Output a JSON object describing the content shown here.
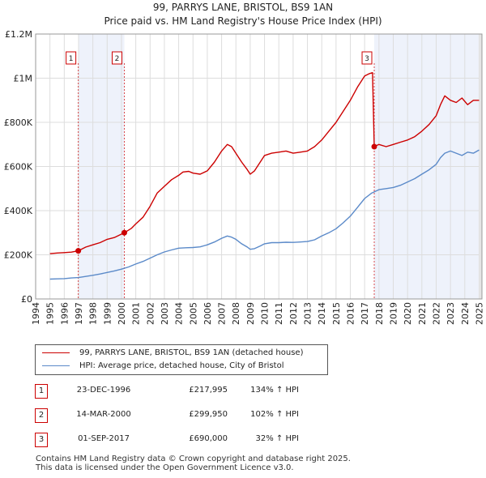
{
  "title": "99, PARRYS LANE, BRISTOL, BS9 1AN",
  "subtitle": "Price paid vs. HM Land Registry's House Price Index (HPI)",
  "colors": {
    "property": "#cc0000",
    "hpi": "#5b8ac9",
    "shade": "#eef2fb",
    "grid": "#dddddd"
  },
  "chart_data": {
    "type": "line",
    "title": "99, PARRYS LANE, BRISTOL, BS9 1AN",
    "subtitle": "Price paid vs. HM Land Registry's House Price Index (HPI)",
    "xlim": [
      1994,
      2025.2
    ],
    "ylim": [
      0,
      1200000
    ],
    "grid": true,
    "y_ticks": [
      {
        "value": 0,
        "label": "£0"
      },
      {
        "value": 200000,
        "label": "£200K"
      },
      {
        "value": 400000,
        "label": "£400K"
      },
      {
        "value": 600000,
        "label": "£600K"
      },
      {
        "value": 800000,
        "label": "£800K"
      },
      {
        "value": 1000000,
        "label": "£1M"
      },
      {
        "value": 1200000,
        "label": "£1.2M"
      }
    ],
    "x_ticks": [
      "1994",
      "1995",
      "1996",
      "1997",
      "1998",
      "1999",
      "2000",
      "2001",
      "2002",
      "2003",
      "2004",
      "2005",
      "2006",
      "2007",
      "2008",
      "2009",
      "2010",
      "2011",
      "2012",
      "2013",
      "2014",
      "2015",
      "2016",
      "2017",
      "2018",
      "2019",
      "2020",
      "2021",
      "2022",
      "2023",
      "2024",
      "2025"
    ],
    "shaded_ranges": [
      [
        1996.98,
        2000.2
      ],
      [
        2017.67,
        2025.2
      ]
    ],
    "series": [
      {
        "name": "99, PARRYS LANE, BRISTOL, BS9 1AN (detached house)",
        "color": "#cc0000",
        "x": [
          1995.0,
          1995.5,
          1996.0,
          1996.5,
          1996.98,
          1997.5,
          1998.0,
          1998.5,
          1999.0,
          1999.5,
          2000.2,
          2000.7,
          2001.0,
          2001.5,
          2002.0,
          2002.5,
          2003.0,
          2003.5,
          2004.0,
          2004.3,
          2004.7,
          2005.0,
          2005.5,
          2006.0,
          2006.5,
          2007.0,
          2007.4,
          2007.7,
          2008.0,
          2008.4,
          2008.8,
          2009.0,
          2009.3,
          2009.7,
          2010.0,
          2010.5,
          2011.0,
          2011.5,
          2012.0,
          2012.5,
          2013.0,
          2013.5,
          2014.0,
          2014.5,
          2015.0,
          2015.5,
          2016.0,
          2016.5,
          2017.0,
          2017.3,
          2017.55,
          2017.67,
          2018.0,
          2018.5,
          2019.0,
          2019.5,
          2020.0,
          2020.5,
          2021.0,
          2021.5,
          2022.0,
          2022.3,
          2022.6,
          2023.0,
          2023.4,
          2023.8,
          2024.2,
          2024.6,
          2025.0
        ],
        "y": [
          205000,
          208000,
          210000,
          212000,
          217995,
          235000,
          245000,
          255000,
          270000,
          278000,
          299950,
          320000,
          340000,
          370000,
          420000,
          480000,
          510000,
          540000,
          560000,
          575000,
          578000,
          570000,
          565000,
          580000,
          620000,
          670000,
          700000,
          690000,
          660000,
          620000,
          585000,
          565000,
          580000,
          620000,
          650000,
          660000,
          665000,
          670000,
          660000,
          665000,
          670000,
          690000,
          720000,
          760000,
          800000,
          850000,
          900000,
          960000,
          1010000,
          1020000,
          1025000,
          690000,
          700000,
          690000,
          700000,
          710000,
          720000,
          735000,
          760000,
          790000,
          830000,
          880000,
          920000,
          900000,
          890000,
          910000,
          880000,
          900000,
          900000
        ]
      },
      {
        "name": "HPI: Average price, detached house, City of Bristol",
        "color": "#5b8ac9",
        "x": [
          1995.0,
          1995.5,
          1996.0,
          1996.5,
          1997.0,
          1997.5,
          1998.0,
          1998.5,
          1999.0,
          1999.5,
          2000.0,
          2000.5,
          2001.0,
          2001.5,
          2002.0,
          2002.5,
          2003.0,
          2003.5,
          2004.0,
          2004.5,
          2005.0,
          2005.5,
          2006.0,
          2006.5,
          2007.0,
          2007.4,
          2007.7,
          2008.0,
          2008.4,
          2008.8,
          2009.0,
          2009.3,
          2009.7,
          2010.0,
          2010.5,
          2011.0,
          2011.5,
          2012.0,
          2012.5,
          2013.0,
          2013.5,
          2014.0,
          2014.5,
          2015.0,
          2015.5,
          2016.0,
          2016.5,
          2017.0,
          2017.5,
          2018.0,
          2018.5,
          2019.0,
          2019.5,
          2020.0,
          2020.5,
          2021.0,
          2021.5,
          2022.0,
          2022.3,
          2022.6,
          2023.0,
          2023.4,
          2023.8,
          2024.2,
          2024.6,
          2025.0
        ],
        "y": [
          90000,
          91000,
          92000,
          95000,
          97000,
          102000,
          107000,
          113000,
          120000,
          127000,
          135000,
          145000,
          158000,
          170000,
          185000,
          200000,
          213000,
          222000,
          230000,
          232000,
          233000,
          236000,
          245000,
          258000,
          275000,
          285000,
          280000,
          270000,
          250000,
          235000,
          225000,
          228000,
          240000,
          250000,
          255000,
          255000,
          257000,
          256000,
          258000,
          260000,
          268000,
          285000,
          300000,
          318000,
          345000,
          375000,
          415000,
          455000,
          480000,
          495000,
          500000,
          505000,
          515000,
          530000,
          545000,
          565000,
          585000,
          610000,
          640000,
          660000,
          670000,
          660000,
          650000,
          665000,
          660000,
          675000
        ]
      }
    ],
    "sales": [
      {
        "label": "1",
        "x": 1996.98,
        "value": 217995
      },
      {
        "label": "2",
        "x": 2000.2,
        "value": 299950
      },
      {
        "label": "3",
        "x": 2017.67,
        "value": 690000
      }
    ]
  },
  "legend": {
    "property": "99, PARRYS LANE, BRISTOL, BS9 1AN (detached house)",
    "hpi": "HPI: Average price, detached house, City of Bristol"
  },
  "sales_table": [
    {
      "num": "1",
      "date": "23-DEC-1996",
      "price": "£217,995",
      "hpi": "134% ↑ HPI"
    },
    {
      "num": "2",
      "date": "14-MAR-2000",
      "price": "£299,950",
      "hpi": "102% ↑ HPI"
    },
    {
      "num": "3",
      "date": "01-SEP-2017",
      "price": "£690,000",
      "hpi": "32% ↑ HPI"
    }
  ],
  "footer": {
    "line1": "Contains HM Land Registry data © Crown copyright and database right 2025.",
    "line2": "This data is licensed under the Open Government Licence v3.0."
  }
}
